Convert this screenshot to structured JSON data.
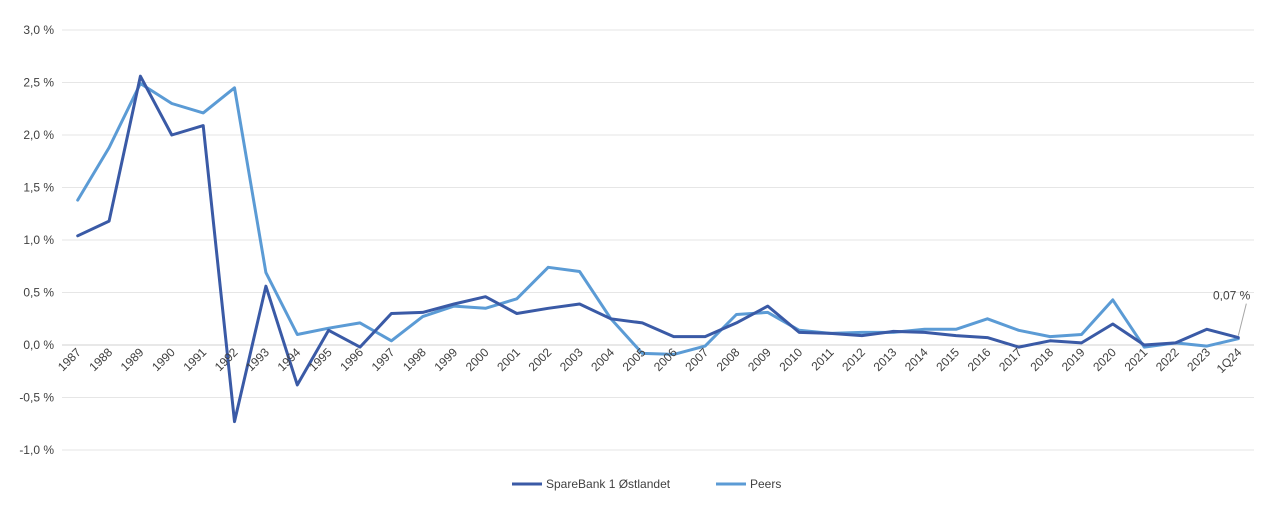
{
  "chart_data": {
    "type": "line",
    "title": "",
    "xlabel": "",
    "ylabel": "",
    "ylim": [
      -1.0,
      3.0
    ],
    "y_ticks": [
      "-1,0 %",
      "-0,5 %",
      "0,0 %",
      "0,5 %",
      "1,0 %",
      "1,5 %",
      "2,0 %",
      "2,5 %",
      "3,0 %"
    ],
    "y_tick_values": [
      -1.0,
      -0.5,
      0.0,
      0.5,
      1.0,
      1.5,
      2.0,
      2.5,
      3.0
    ],
    "grid": "horizontal",
    "legend_position": "bottom-center",
    "categories": [
      "1987",
      "1988",
      "1989",
      "1990",
      "1991",
      "1992",
      "1993",
      "1994",
      "1995",
      "1996",
      "1997",
      "1998",
      "1999",
      "2000",
      "2001",
      "2002",
      "2003",
      "2004",
      "2005",
      "2006",
      "2007",
      "2008",
      "2009",
      "2010",
      "2011",
      "2012",
      "2013",
      "2014",
      "2015",
      "2016",
      "2017",
      "2018",
      "2019",
      "2020",
      "2021",
      "2022",
      "2023",
      "1Q24"
    ],
    "series": [
      {
        "name": "SpareBank 1 Østlandet",
        "color": "#3a5aa6",
        "values": [
          1.04,
          1.18,
          2.56,
          2.0,
          2.09,
          -0.73,
          0.56,
          -0.38,
          0.14,
          -0.02,
          0.3,
          0.31,
          0.39,
          0.46,
          0.3,
          0.35,
          0.39,
          0.25,
          0.21,
          0.08,
          0.08,
          0.21,
          0.37,
          0.12,
          0.11,
          0.09,
          0.13,
          0.12,
          0.09,
          0.07,
          -0.02,
          0.04,
          0.02,
          0.2,
          0.0,
          0.02,
          0.15,
          0.07
        ]
      },
      {
        "name": "Peers",
        "color": "#5b9bd5",
        "values": [
          1.38,
          1.88,
          2.49,
          2.3,
          2.21,
          2.45,
          0.69,
          0.1,
          0.16,
          0.21,
          0.04,
          0.27,
          0.37,
          0.35,
          0.44,
          0.74,
          0.7,
          0.25,
          -0.08,
          -0.09,
          -0.01,
          0.29,
          0.31,
          0.14,
          0.11,
          0.12,
          0.12,
          0.15,
          0.15,
          0.25,
          0.14,
          0.08,
          0.1,
          0.43,
          -0.02,
          0.02,
          -0.01,
          0.06
        ]
      }
    ],
    "annotations": [
      {
        "text": "0,07 %",
        "category": "1Q24",
        "series": "SpareBank 1 Østlandet"
      }
    ]
  }
}
